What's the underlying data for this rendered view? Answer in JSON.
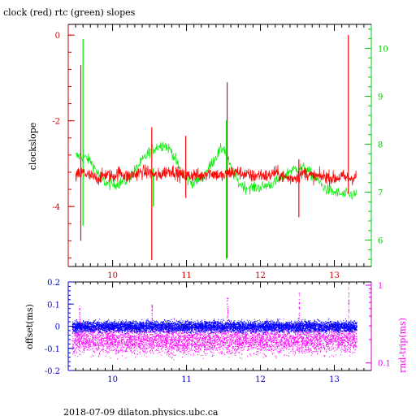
{
  "footer": "2018-07-09  dilaton.physics.ubc.ca",
  "colors": {
    "clock": "#ff0000",
    "rtc": "#00ee00",
    "offset": "#0000ff",
    "rndtrip": "#ff00ff",
    "axis": "#000000"
  },
  "chart_data": [
    {
      "type": "line",
      "title": "clock (red) rtc (green) slopes",
      "ylabel": "clockslope",
      "y2label": "",
      "xlim": [
        9.4,
        13.5
      ],
      "ylim": [
        -5.4,
        0.25
      ],
      "y2lim": [
        5.45,
        10.5
      ],
      "x_ticks": [
        "10",
        "11",
        "12",
        "13"
      ],
      "y_ticks": [
        "0",
        "-2",
        "-4"
      ],
      "y2_ticks": [
        "10",
        "9",
        "8",
        "7",
        "6"
      ],
      "grid": false,
      "series": [
        {
          "name": "clock",
          "axis": "left",
          "x": [
            9.5,
            9.6,
            9.7,
            9.8,
            9.9,
            10.0,
            10.1,
            10.2,
            10.3,
            10.4,
            10.5,
            10.6,
            10.7,
            10.8,
            10.9,
            11.0,
            11.1,
            11.2,
            11.3,
            11.4,
            11.5,
            11.6,
            11.7,
            11.8,
            11.9,
            12.0,
            12.1,
            12.2,
            12.3,
            12.4,
            12.5,
            12.6,
            12.7,
            12.8,
            12.9,
            13.0,
            13.1,
            13.2,
            13.3
          ],
          "values": [
            -3.3,
            -3.2,
            -3.3,
            -3.35,
            -3.25,
            -3.3,
            -3.2,
            -3.3,
            -3.25,
            -3.2,
            -3.2,
            -3.3,
            -3.2,
            -3.15,
            -3.25,
            -3.3,
            -3.25,
            -3.3,
            -3.2,
            -3.25,
            -3.3,
            -3.2,
            -3.2,
            -3.25,
            -3.3,
            -3.25,
            -3.3,
            -3.2,
            -3.3,
            -3.35,
            -3.3,
            -3.2,
            -3.3,
            -3.3,
            -3.3,
            -3.35,
            -3.3,
            -3.35,
            -3.3
          ],
          "spikes": [
            [
              9.57,
              -0.7,
              -4.8
            ],
            [
              10.53,
              -2.15,
              -5.25
            ],
            [
              10.99,
              -2.35,
              -3.8
            ],
            [
              11.55,
              -1.1,
              -5.2
            ],
            [
              12.52,
              -2.9,
              -4.25
            ],
            [
              13.19,
              0.0,
              -3.7
            ]
          ]
        },
        {
          "name": "rtc",
          "axis": "right",
          "x": [
            9.5,
            9.6,
            9.7,
            9.8,
            9.9,
            10.0,
            10.1,
            10.2,
            10.3,
            10.4,
            10.5,
            10.6,
            10.7,
            10.8,
            10.9,
            11.0,
            11.1,
            11.2,
            11.3,
            11.4,
            11.5,
            11.6,
            11.7,
            11.8,
            11.9,
            12.0,
            12.1,
            12.2,
            12.3,
            12.4,
            12.5,
            12.6,
            12.7,
            12.8,
            12.9,
            13.0,
            13.1,
            13.2,
            13.3
          ],
          "values": [
            7.75,
            7.75,
            7.65,
            7.4,
            7.2,
            7.15,
            7.2,
            7.25,
            7.45,
            7.65,
            7.85,
            7.95,
            8.0,
            7.85,
            7.5,
            7.25,
            7.2,
            7.3,
            7.5,
            7.75,
            7.95,
            7.5,
            7.2,
            7.1,
            7.1,
            7.1,
            7.15,
            7.2,
            7.3,
            7.45,
            7.5,
            7.5,
            7.35,
            7.2,
            7.05,
            7.0,
            6.95,
            6.95,
            6.95
          ],
          "spikes": [
            [
              9.6,
              10.2,
              6.3
            ],
            [
              11.54,
              8.5,
              5.6
            ],
            [
              10.55,
              7.5,
              6.7
            ]
          ]
        }
      ]
    },
    {
      "type": "scatter",
      "title": "",
      "ylabel": "offset(ms)",
      "y2label": "rnd-trip(ms)",
      "xlim": [
        9.4,
        13.5
      ],
      "ylim": [
        -0.2,
        0.2
      ],
      "y2scale": "log",
      "y2lim": [
        0.08,
        1.1
      ],
      "x_ticks": [
        "10",
        "11",
        "12",
        "13"
      ],
      "y_ticks": [
        "0.2",
        "0.1",
        "0",
        "-0.1",
        "-0.2"
      ],
      "y2_ticks": [
        "1",
        "0.1"
      ],
      "grid": false,
      "series": [
        {
          "name": "offset",
          "axis": "left",
          "x_range": [
            9.45,
            13.3
          ],
          "center": 0.0,
          "spread": 0.04
        },
        {
          "name": "rnd-trip",
          "axis": "right",
          "x_range": [
            9.45,
            13.3
          ],
          "center": 0.2,
          "spread_factor": 1.5
        }
      ]
    }
  ]
}
